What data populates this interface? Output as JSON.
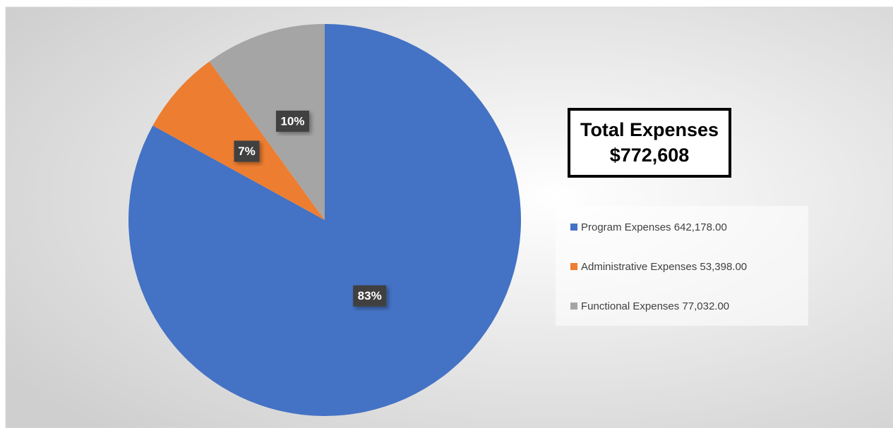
{
  "chart_data": {
    "type": "pie",
    "title": "Total Expenses",
    "subtitle": "$772,608",
    "categories": [
      "Program Expenses 642,178.00",
      "Administrative Expenses 53,398.00",
      "Functional Expenses 77,032.00"
    ],
    "values": [
      83,
      7,
      10
    ],
    "value_labels": [
      "83%",
      "7%",
      "10%"
    ],
    "colors": [
      "#4472c4",
      "#ed7d31",
      "#a5a5a5"
    ],
    "legend": "right"
  }
}
